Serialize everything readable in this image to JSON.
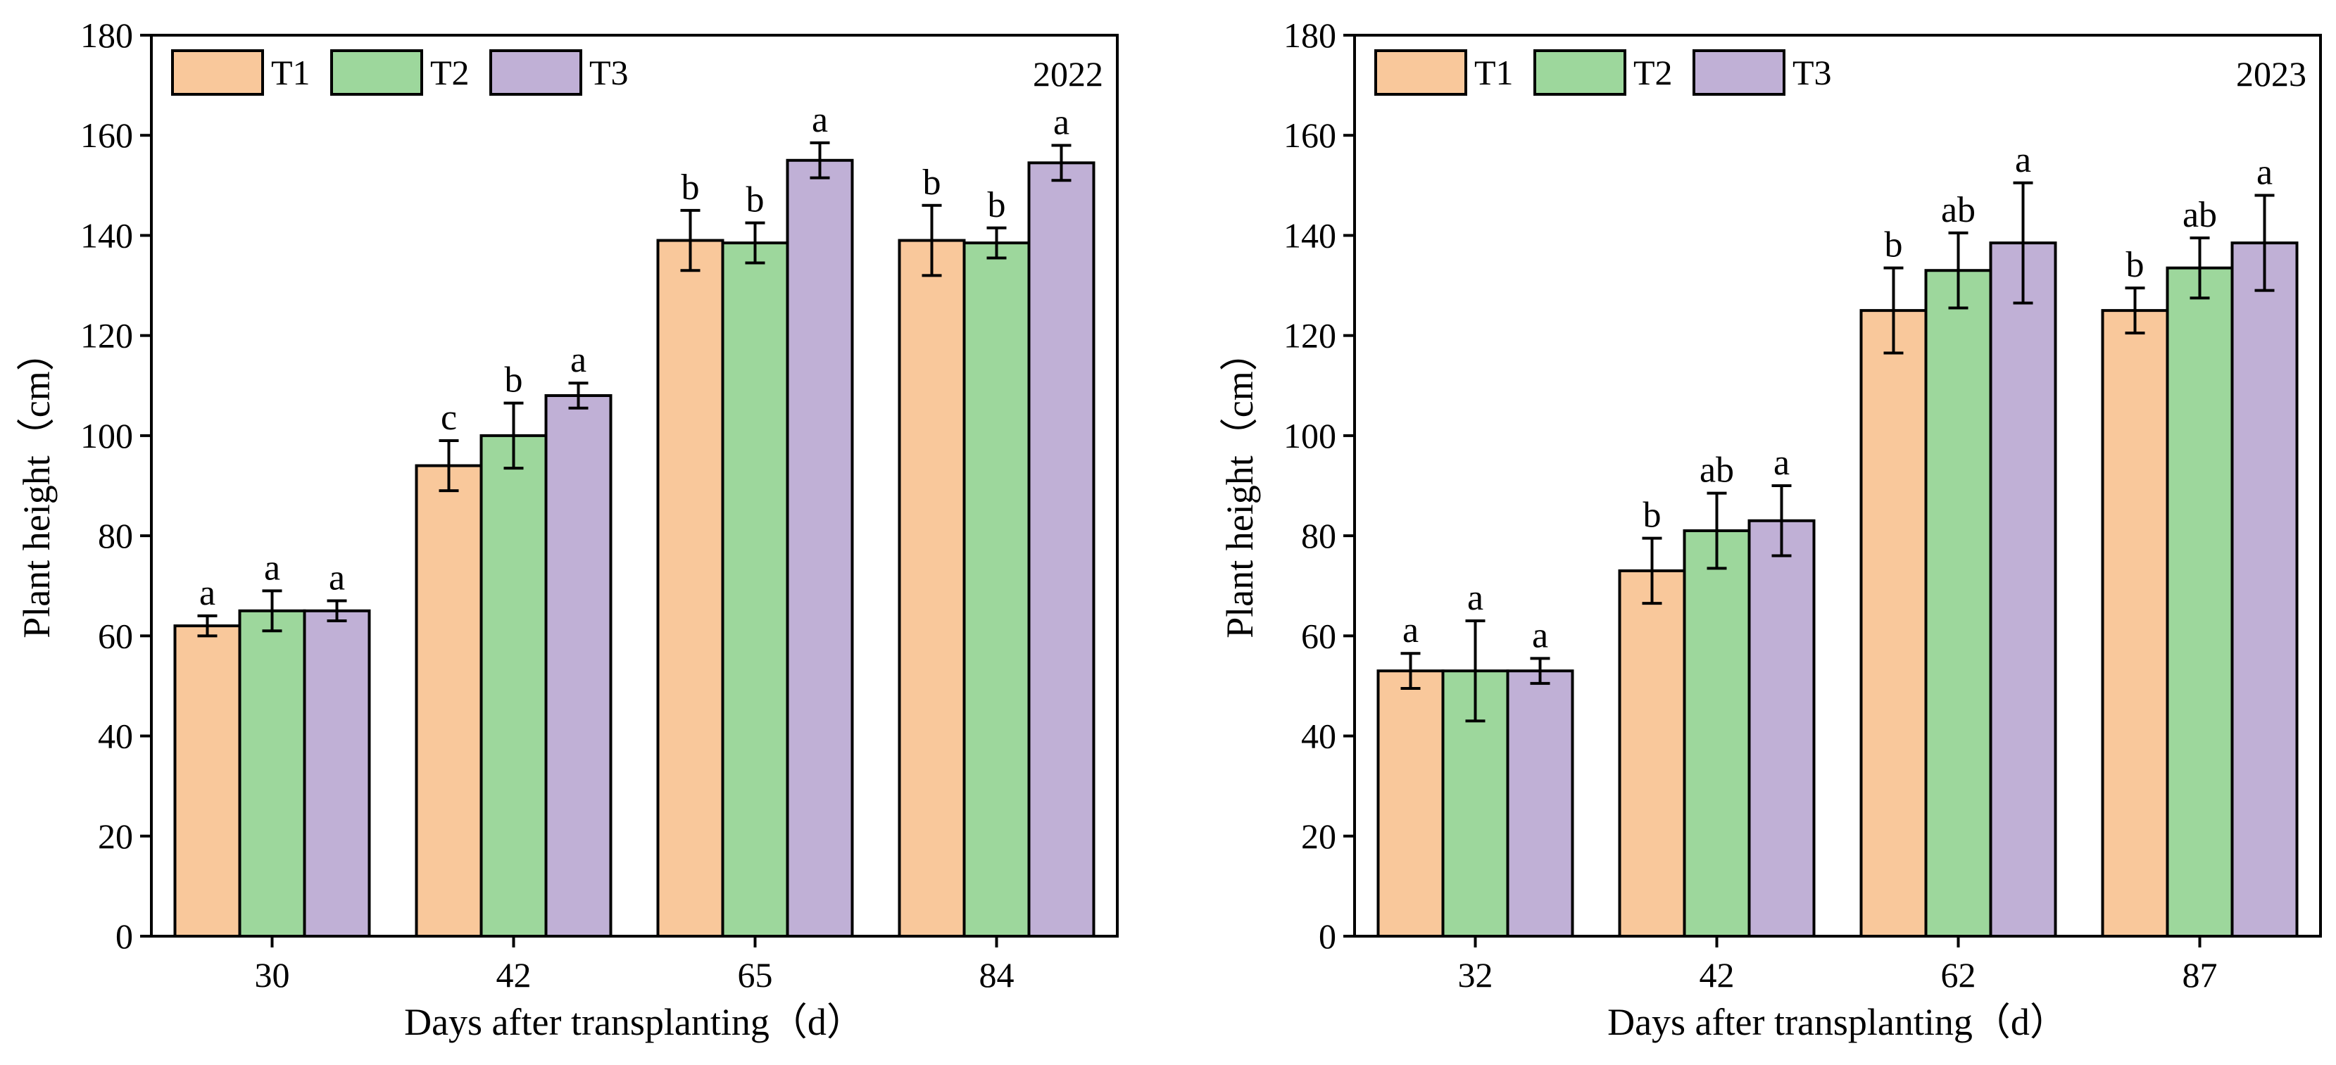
{
  "chart_data": [
    {
      "type": "bar",
      "year": "2022",
      "xlabel": "Days after transplanting（d）",
      "ylabel": "Plant height（cm）",
      "categories": [
        "30",
        "42",
        "65",
        "84"
      ],
      "ylim": [
        0,
        180
      ],
      "yticks": [
        "0",
        "20",
        "40",
        "60",
        "80",
        "100",
        "120",
        "140",
        "160",
        "180"
      ],
      "legend": [
        "T1",
        "T2",
        "T3"
      ],
      "legend_position": "top-left",
      "series": [
        {
          "name": "T1",
          "values": [
            62,
            94,
            139,
            139
          ],
          "errors": [
            2,
            5,
            6,
            7
          ],
          "labels": [
            "a",
            "c",
            "b",
            "b"
          ]
        },
        {
          "name": "T2",
          "values": [
            65,
            100,
            138.5,
            138.5
          ],
          "errors": [
            4,
            6.5,
            4,
            3
          ],
          "labels": [
            "a",
            "b",
            "b",
            "b"
          ]
        },
        {
          "name": "T3",
          "values": [
            65,
            108,
            155,
            154.5
          ],
          "errors": [
            2,
            2.5,
            3.5,
            3.5
          ],
          "labels": [
            "a",
            "a",
            "a",
            "a"
          ]
        }
      ]
    },
    {
      "type": "bar",
      "year": "2023",
      "xlabel": "Days after transplanting（d）",
      "ylabel": "Plant height（cm）",
      "categories": [
        "32",
        "42",
        "62",
        "87"
      ],
      "ylim": [
        0,
        180
      ],
      "yticks": [
        "0",
        "20",
        "40",
        "60",
        "80",
        "100",
        "120",
        "140",
        "160",
        "180"
      ],
      "legend": [
        "T1",
        "T2",
        "T3"
      ],
      "legend_position": "top-left",
      "series": [
        {
          "name": "T1",
          "values": [
            53,
            73,
            125,
            125
          ],
          "errors": [
            3.5,
            6.5,
            8.5,
            4.5
          ],
          "labels": [
            "a",
            "b",
            "b",
            "b"
          ]
        },
        {
          "name": "T2",
          "values": [
            53,
            81,
            133,
            133.5
          ],
          "errors": [
            10,
            7.5,
            7.5,
            6
          ],
          "labels": [
            "a",
            "ab",
            "ab",
            "ab"
          ]
        },
        {
          "name": "T3",
          "values": [
            53,
            83,
            138.5,
            138.5
          ],
          "errors": [
            2.5,
            7,
            12,
            9.5
          ],
          "labels": [
            "a",
            "a",
            "a",
            "a"
          ]
        }
      ]
    }
  ],
  "colors": {
    "T1": "#f9c89b",
    "T2": "#9dd79c",
    "T3": "#c0b0d6",
    "stroke": "#000000"
  }
}
